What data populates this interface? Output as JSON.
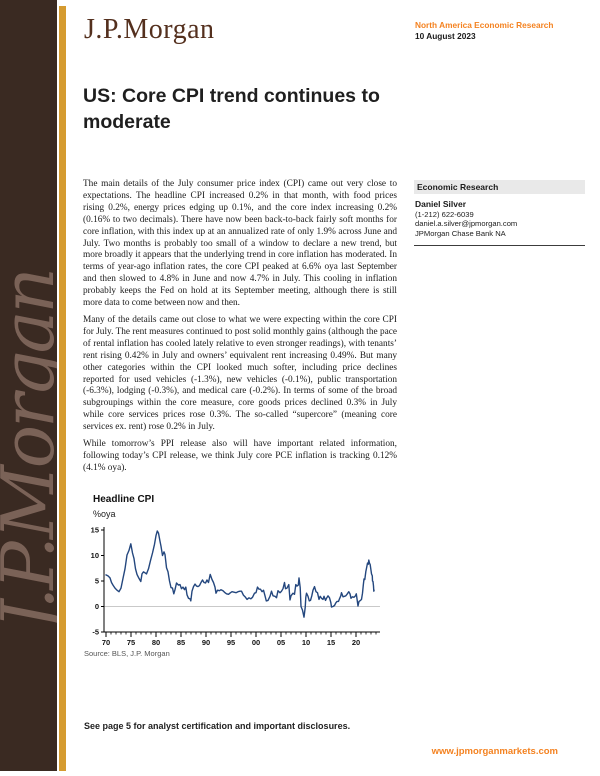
{
  "watermark": {
    "text": "J.P.Morgan"
  },
  "header": {
    "brand": "J.P.Morgan",
    "region": "North America Economic Research",
    "date": "10 August 2023"
  },
  "article": {
    "title": "US: Core CPI trend continues to moderate",
    "paragraphs": [
      "The main details of the July consumer price index (CPI) came out very close to expectations. The headline CPI increased 0.2% in that month, with food prices rising 0.2%, energy prices edging up 0.1%, and the core index increasing 0.2% (0.16% to two decimals). There have now been back-to-back fairly soft months for core inflation, with this index up at an annualized rate of only 1.9% across June and July. Two months is probably too small of a window to declare a new trend, but more broadly it appears that the underlying trend in core inflation has moderated. In terms of year-ago inflation rates, the core CPI peaked at 6.6% oya last September and then slowed to 4.8% in June and now 4.7% in July. This cooling in inflation probably keeps the Fed on hold at its September meeting, although there is still more data to come between now and then.",
      "Many of the details came out close to what we were expecting within the core CPI for July. The rent measures continued to post solid monthly gains (although the pace of rental inflation has cooled lately relative to even stronger readings), with tenants’ rent rising 0.42% in July and owners’ equivalent rent increasing 0.49%. But many other categories within the CPI looked much softer, including price declines reported for used vehicles (-1.3%), new vehicles (-0.1%), public transportation (-6.3%), lodging (-0.3%), and medical care (-0.2%). In terms of some of the broad subgroupings within the core measure, core goods prices declined 0.3% in July while core services prices rose 0.3%. The so-called “supercore” (meaning core services ex. rent) rose 0.2% in July.",
      "While tomorrow’s PPI release also will have important related information, following today’s CPI release, we think July core PCE inflation is tracking 0.12% (4.1% oya)."
    ]
  },
  "sidebar": {
    "section": "Economic Research",
    "analyst": "Daniel Silver",
    "phone": "(1-212) 622-6039",
    "email": "daniel.a.silver@jpmorgan.com",
    "firm": "JPMorgan Chase Bank NA"
  },
  "footer": {
    "note": "See page 5 for analyst certification and important disclosures.",
    "url": "www.jpmorganmarkets.com"
  },
  "chart_data": {
    "type": "line",
    "title": "Headline CPI",
    "ylabel": "%oya",
    "source": "Source: BLS, J.P. Morgan",
    "ylim": [
      -5,
      15
    ],
    "xlim": [
      1969.6,
      2024.8
    ],
    "yticks": [
      -5,
      0,
      5,
      10,
      15
    ],
    "xticks": [
      {
        "year": 1970,
        "label": "70"
      },
      {
        "year": 1975,
        "label": "75"
      },
      {
        "year": 1980,
        "label": "80"
      },
      {
        "year": 1985,
        "label": "85"
      },
      {
        "year": 1990,
        "label": "90"
      },
      {
        "year": 1995,
        "label": "95"
      },
      {
        "year": 2000,
        "label": "00"
      },
      {
        "year": 2005,
        "label": "05"
      },
      {
        "year": 2010,
        "label": "10"
      },
      {
        "year": 2015,
        "label": "15"
      },
      {
        "year": 2020,
        "label": "20"
      }
    ],
    "minor_tick_every_years": 1,
    "grid": "zero-line-only",
    "legend": "none",
    "colors": {
      "line": "#24477E",
      "zero_line": "#c9c9c9"
    },
    "points": [
      [
        1970.0,
        6.2
      ],
      [
        1970.4,
        6.0
      ],
      [
        1970.8,
        5.6
      ],
      [
        1971.1,
        4.7
      ],
      [
        1971.4,
        4.2
      ],
      [
        1971.8,
        3.6
      ],
      [
        1972.2,
        3.2
      ],
      [
        1972.6,
        2.9
      ],
      [
        1973.0,
        3.6
      ],
      [
        1973.4,
        5.5
      ],
      [
        1973.8,
        7.4
      ],
      [
        1974.2,
        10.1
      ],
      [
        1974.6,
        11.0
      ],
      [
        1974.95,
        12.3
      ],
      [
        1975.3,
        10.5
      ],
      [
        1975.6,
        9.4
      ],
      [
        1975.9,
        7.4
      ],
      [
        1976.2,
        6.3
      ],
      [
        1976.6,
        5.5
      ],
      [
        1976.95,
        4.9
      ],
      [
        1977.2,
        6.4
      ],
      [
        1977.5,
        6.8
      ],
      [
        1977.8,
        6.6
      ],
      [
        1978.1,
        6.4
      ],
      [
        1978.5,
        7.4
      ],
      [
        1978.9,
        9.0
      ],
      [
        1979.3,
        10.5
      ],
      [
        1979.7,
        12.2
      ],
      [
        1980.0,
        13.9
      ],
      [
        1980.25,
        14.8
      ],
      [
        1980.5,
        14.4
      ],
      [
        1980.8,
        12.8
      ],
      [
        1981.0,
        11.8
      ],
      [
        1981.3,
        10.0
      ],
      [
        1981.6,
        10.7
      ],
      [
        1981.8,
        10.2
      ],
      [
        1982.1,
        7.6
      ],
      [
        1982.4,
        6.8
      ],
      [
        1982.7,
        5.0
      ],
      [
        1983.0,
        3.7
      ],
      [
        1983.3,
        3.6
      ],
      [
        1983.55,
        2.5
      ],
      [
        1983.8,
        3.3
      ],
      [
        1984.1,
        4.6
      ],
      [
        1984.5,
        4.2
      ],
      [
        1984.8,
        4.3
      ],
      [
        1985.1,
        3.5
      ],
      [
        1985.4,
        3.8
      ],
      [
        1985.7,
        3.3
      ],
      [
        1985.95,
        3.8
      ],
      [
        1986.2,
        2.3
      ],
      [
        1986.5,
        1.6
      ],
      [
        1986.8,
        1.5
      ],
      [
        1986.95,
        1.1
      ],
      [
        1987.2,
        3.0
      ],
      [
        1987.5,
        3.9
      ],
      [
        1987.8,
        4.4
      ],
      [
        1988.1,
        4.0
      ],
      [
        1988.4,
        3.9
      ],
      [
        1988.7,
        4.1
      ],
      [
        1989.0,
        4.7
      ],
      [
        1989.3,
        5.2
      ],
      [
        1989.6,
        4.7
      ],
      [
        1989.9,
        4.6
      ],
      [
        1990.2,
        5.2
      ],
      [
        1990.5,
        4.7
      ],
      [
        1990.85,
        6.3
      ],
      [
        1991.2,
        5.3
      ],
      [
        1991.5,
        4.7
      ],
      [
        1991.8,
        3.8
      ],
      [
        1992.0,
        2.6
      ],
      [
        1992.3,
        3.2
      ],
      [
        1992.7,
        3.1
      ],
      [
        1993.0,
        3.3
      ],
      [
        1993.4,
        3.1
      ],
      [
        1993.8,
        2.7
      ],
      [
        1994.1,
        2.5
      ],
      [
        1994.5,
        2.4
      ],
      [
        1994.9,
        2.7
      ],
      [
        1995.2,
        2.9
      ],
      [
        1995.6,
        2.8
      ],
      [
        1996.0,
        2.7
      ],
      [
        1996.4,
        2.9
      ],
      [
        1996.8,
        3.0
      ],
      [
        1997.1,
        3.0
      ],
      [
        1997.5,
        2.2
      ],
      [
        1997.9,
        1.8
      ],
      [
        1998.2,
        1.4
      ],
      [
        1998.6,
        1.7
      ],
      [
        1998.95,
        1.5
      ],
      [
        1999.3,
        1.8
      ],
      [
        1999.7,
        2.6
      ],
      [
        2000.0,
        2.7
      ],
      [
        2000.3,
        3.8
      ],
      [
        2000.6,
        3.4
      ],
      [
        2000.9,
        3.4
      ],
      [
        2001.2,
        2.9
      ],
      [
        2001.5,
        3.2
      ],
      [
        2001.8,
        2.1
      ],
      [
        2002.05,
        1.1
      ],
      [
        2002.4,
        1.2
      ],
      [
        2002.8,
        2.0
      ],
      [
        2003.1,
        3.0
      ],
      [
        2003.4,
        2.1
      ],
      [
        2003.8,
        2.0
      ],
      [
        2004.1,
        1.7
      ],
      [
        2004.4,
        3.1
      ],
      [
        2004.8,
        2.7
      ],
      [
        2005.1,
        3.0
      ],
      [
        2005.4,
        3.5
      ],
      [
        2005.7,
        4.7
      ],
      [
        2005.9,
        3.5
      ],
      [
        2006.2,
        3.6
      ],
      [
        2006.55,
        4.3
      ],
      [
        2006.8,
        1.3
      ],
      [
        2007.0,
        2.1
      ],
      [
        2007.4,
        2.6
      ],
      [
        2007.7,
        2.4
      ],
      [
        2007.95,
        4.3
      ],
      [
        2008.2,
        4.0
      ],
      [
        2008.45,
        4.2
      ],
      [
        2008.6,
        5.6
      ],
      [
        2008.85,
        3.7
      ],
      [
        2009.0,
        0.0
      ],
      [
        2009.3,
        -0.7
      ],
      [
        2009.6,
        -2.1
      ],
      [
        2009.85,
        -0.2
      ],
      [
        2009.95,
        1.8
      ],
      [
        2010.1,
        2.6
      ],
      [
        2010.4,
        2.0
      ],
      [
        2010.65,
        1.1
      ],
      [
        2010.9,
        1.2
      ],
      [
        2011.15,
        2.1
      ],
      [
        2011.4,
        3.2
      ],
      [
        2011.7,
        3.9
      ],
      [
        2012.0,
        2.9
      ],
      [
        2012.3,
        2.7
      ],
      [
        2012.6,
        1.4
      ],
      [
        2012.85,
        2.0
      ],
      [
        2013.1,
        1.6
      ],
      [
        2013.4,
        1.4
      ],
      [
        2013.6,
        2.0
      ],
      [
        2013.9,
        1.2
      ],
      [
        2014.1,
        1.6
      ],
      [
        2014.4,
        2.1
      ],
      [
        2014.7,
        1.7
      ],
      [
        2014.95,
        0.8
      ],
      [
        2015.1,
        -0.1
      ],
      [
        2015.4,
        0.0
      ],
      [
        2015.7,
        0.2
      ],
      [
        2015.95,
        0.7
      ],
      [
        2016.2,
        1.0
      ],
      [
        2016.5,
        1.0
      ],
      [
        2016.7,
        1.5
      ],
      [
        2016.95,
        2.1
      ],
      [
        2017.1,
        2.7
      ],
      [
        2017.4,
        1.9
      ],
      [
        2017.7,
        2.0
      ],
      [
        2017.95,
        2.1
      ],
      [
        2018.2,
        2.4
      ],
      [
        2018.55,
        2.9
      ],
      [
        2018.8,
        2.5
      ],
      [
        2019.0,
        1.6
      ],
      [
        2019.3,
        1.9
      ],
      [
        2019.6,
        1.8
      ],
      [
        2019.9,
        2.1
      ],
      [
        2020.05,
        2.5
      ],
      [
        2020.4,
        0.1
      ],
      [
        2020.6,
        1.0
      ],
      [
        2020.9,
        1.2
      ],
      [
        2021.1,
        1.4
      ],
      [
        2021.3,
        2.6
      ],
      [
        2021.45,
        4.2
      ],
      [
        2021.6,
        5.4
      ],
      [
        2021.75,
        5.3
      ],
      [
        2021.95,
        6.8
      ],
      [
        2022.1,
        7.5
      ],
      [
        2022.3,
        8.5
      ],
      [
        2022.45,
        8.3
      ],
      [
        2022.55,
        9.1
      ],
      [
        2022.7,
        8.5
      ],
      [
        2022.85,
        8.2
      ],
      [
        2023.0,
        7.1
      ],
      [
        2023.1,
        6.4
      ],
      [
        2023.25,
        6.0
      ],
      [
        2023.3,
        5.0
      ],
      [
        2023.4,
        4.9
      ],
      [
        2023.5,
        4.0
      ],
      [
        2023.55,
        3.0
      ],
      [
        2023.62,
        3.2
      ]
    ]
  }
}
